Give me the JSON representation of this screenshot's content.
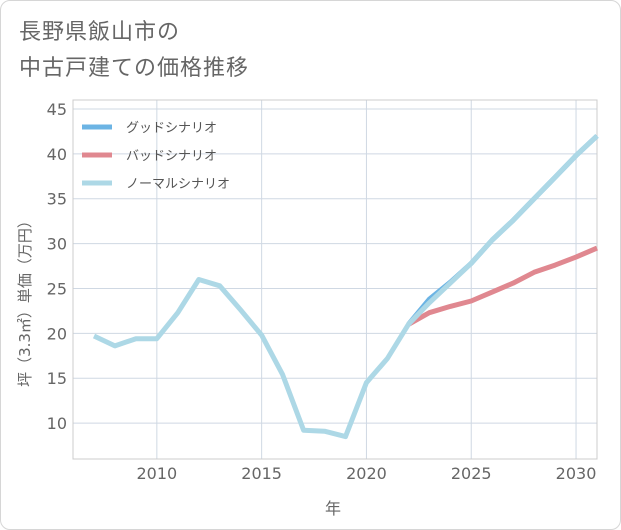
{
  "title_lines": [
    "長野県飯山市の",
    "中古戸建ての価格推移"
  ],
  "chart_data": {
    "type": "line",
    "title": "長野県飯山市の中古戸建ての価格推移",
    "xlabel": "年",
    "ylabel": "坪（3.3㎡）単価（万円）",
    "xlim": [
      2006,
      2031
    ],
    "ylim": [
      6,
      46
    ],
    "x_ticks": [
      2010,
      2015,
      2020,
      2025,
      2030
    ],
    "y_ticks": [
      10,
      15,
      20,
      25,
      30,
      35,
      40,
      45
    ],
    "grid": true,
    "legend_position": "top-left",
    "series": [
      {
        "name": "グッドシナリオ",
        "color": "#6cb4e4",
        "x": [
          2022,
          2023,
          2024,
          2025,
          2026,
          2027,
          2028,
          2029,
          2030,
          2031
        ],
        "values": [
          21.0,
          23.8,
          25.7,
          27.8,
          30.4,
          32.6,
          35.0,
          37.4,
          39.8,
          42.0
        ]
      },
      {
        "name": "バッドシナリオ",
        "color": "#e08890",
        "x": [
          2022,
          2023,
          2024,
          2025,
          2026,
          2027,
          2028,
          2029,
          2030,
          2031
        ],
        "values": [
          21.0,
          22.3,
          23.0,
          23.6,
          24.6,
          25.6,
          26.8,
          27.6,
          28.5,
          29.5
        ]
      },
      {
        "name": "ノーマルシナリオ",
        "color": "#add8e6",
        "x": [
          2007,
          2008,
          2009,
          2010,
          2011,
          2012,
          2013,
          2014,
          2015,
          2016,
          2017,
          2018,
          2019,
          2020,
          2021,
          2022,
          2023,
          2024,
          2025,
          2026,
          2027,
          2028,
          2029,
          2030,
          2031
        ],
        "values": [
          19.7,
          18.6,
          19.4,
          19.4,
          22.3,
          26.0,
          25.3,
          22.6,
          19.8,
          15.4,
          9.2,
          9.1,
          8.5,
          14.5,
          17.2,
          21.0,
          23.4,
          25.6,
          27.8,
          30.4,
          32.6,
          35.0,
          37.4,
          39.8,
          42.0
        ]
      }
    ]
  }
}
